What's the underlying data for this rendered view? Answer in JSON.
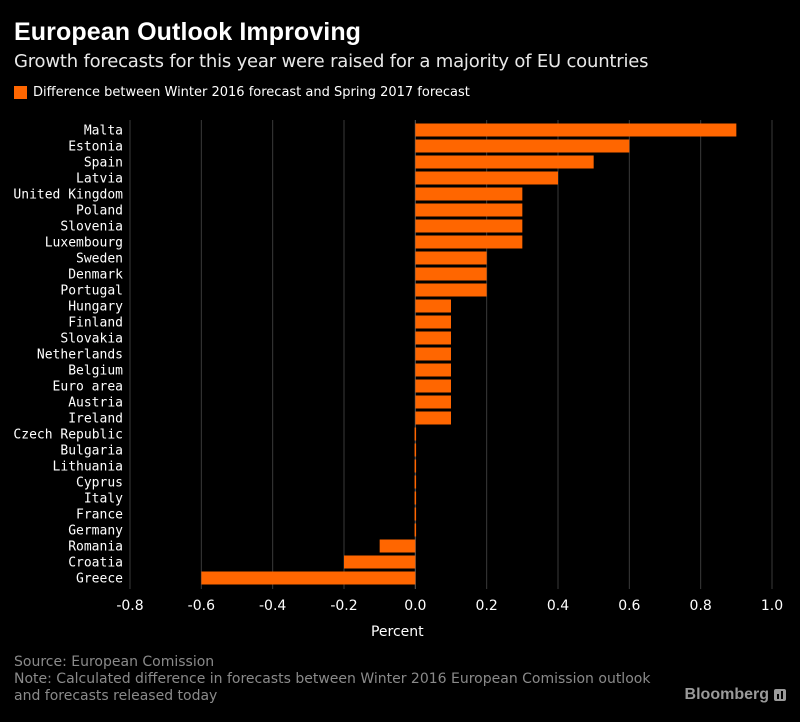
{
  "title": "European Outlook Improving",
  "subtitle": "Growth forecasts for this year were raised for a majority of EU countries",
  "legend_label": "Difference between Winter 2016 forecast and Spring 2017 forecast",
  "footer": {
    "source": "Source: European Comission",
    "note_line1": "Note: Calculated difference in forecasts between Winter 2016 European Comission outlook",
    "note_line2": "and forecasts released today",
    "brand": "Bloomberg"
  },
  "colors": {
    "bar": "#ff6600",
    "background": "#000000",
    "grid": "#3a3a3a",
    "text": "#ffffff"
  },
  "chart_data": {
    "type": "bar",
    "orientation": "horizontal",
    "categories": [
      "Malta",
      "Estonia",
      "Spain",
      "Latvia",
      "United Kingdom",
      "Poland",
      "Slovenia",
      "Luxembourg",
      "Sweden",
      "Denmark",
      "Portugal",
      "Hungary",
      "Finland",
      "Slovakia",
      "Netherlands",
      "Belgium",
      "Euro area",
      "Austria",
      "Ireland",
      "Czech Republic",
      "Bulgaria",
      "Lithuania",
      "Cyprus",
      "Italy",
      "France",
      "Germany",
      "Romania",
      "Croatia",
      "Greece"
    ],
    "values": [
      0.9,
      0.6,
      0.5,
      0.4,
      0.3,
      0.3,
      0.3,
      0.3,
      0.2,
      0.2,
      0.2,
      0.1,
      0.1,
      0.1,
      0.1,
      0.1,
      0.1,
      0.1,
      0.1,
      0.0,
      0.0,
      0.0,
      0.0,
      0.0,
      0.0,
      0.0,
      -0.1,
      -0.2,
      -0.6
    ],
    "series_name": "Difference between Winter 2016 forecast and Spring 2017 forecast",
    "xlabel": "Percent",
    "ylabel": "",
    "xlim": [
      -0.8,
      1.0
    ],
    "xticks": [
      -0.8,
      -0.6,
      -0.4,
      -0.2,
      0.0,
      0.2,
      0.4,
      0.6,
      0.8,
      1.0
    ],
    "xtick_labels": [
      "-0.8",
      "-0.6",
      "-0.4",
      "-0.2",
      "0.0",
      "0.2",
      "0.4",
      "0.6",
      "0.8",
      "1.0"
    ],
    "grid": "vertical",
    "legend_position": "top-left"
  }
}
